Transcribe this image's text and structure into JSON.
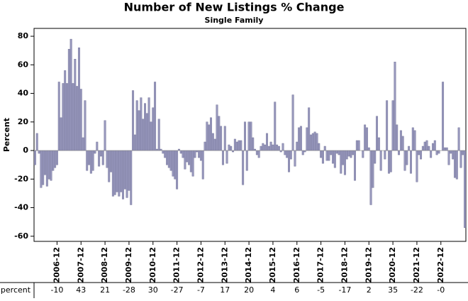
{
  "chart_data": {
    "type": "bar",
    "title": "Number of New Listings % Change",
    "subtitle": "Single Family",
    "y_label": "Percent",
    "color": "#9898bd",
    "ylim": [
      -63.6,
      85.5
    ],
    "yticks": [
      -60,
      -40,
      -20,
      0,
      20,
      40,
      60,
      80
    ],
    "categories": [
      null,
      null,
      null,
      null,
      null,
      null,
      null,
      null,
      null,
      null,
      null,
      "2006-12",
      null,
      null,
      null,
      null,
      null,
      null,
      null,
      null,
      null,
      null,
      null,
      "2007-12",
      null,
      null,
      null,
      null,
      null,
      null,
      null,
      null,
      null,
      null,
      null,
      "2008-12",
      null,
      null,
      null,
      null,
      null,
      null,
      null,
      null,
      null,
      null,
      null,
      "2009-12",
      null,
      null,
      null,
      null,
      null,
      null,
      null,
      null,
      null,
      null,
      null,
      "2010-12",
      null,
      null,
      null,
      null,
      null,
      null,
      null,
      null,
      null,
      null,
      null,
      "2011-12",
      null,
      null,
      null,
      null,
      null,
      null,
      null,
      null,
      null,
      null,
      null,
      "2012-12",
      null,
      null,
      null,
      null,
      null,
      null,
      null,
      null,
      null,
      null,
      null,
      "2013-12",
      null,
      null,
      null,
      null,
      null,
      null,
      null,
      null,
      null,
      null,
      null,
      "2014-12",
      null,
      null,
      null,
      null,
      null,
      null,
      null,
      null,
      null,
      null,
      null,
      "2015-12",
      null,
      null,
      null,
      null,
      null,
      null,
      null,
      null,
      null,
      null,
      null,
      "2016-12",
      null,
      null,
      null,
      null,
      null,
      null,
      null,
      null,
      null,
      null,
      null,
      "2017-12",
      null,
      null,
      null,
      null,
      null,
      null,
      null,
      null,
      null,
      null,
      null,
      "2018-12",
      null,
      null,
      null,
      null,
      null,
      null,
      null,
      null,
      null,
      null,
      null,
      "2019-12",
      null,
      null,
      null,
      null,
      null,
      null,
      null,
      null,
      null,
      null,
      null,
      "2020-12",
      null,
      null,
      null,
      null,
      null,
      null,
      null,
      null,
      null,
      null,
      null,
      "2021-12",
      null,
      null,
      null,
      null,
      null,
      null,
      null,
      null,
      null,
      null,
      null,
      "2022-12",
      null,
      null,
      null,
      null,
      null,
      null,
      null,
      null,
      null,
      null,
      null,
      null
    ],
    "values": [
      -10,
      12,
      -2,
      -26,
      -24,
      -17,
      -25,
      -20,
      -21,
      -14,
      -12,
      -10,
      48,
      23,
      47,
      56,
      47,
      71,
      78,
      47,
      64,
      45,
      72,
      43,
      9,
      35,
      -14,
      -10,
      -16,
      -14,
      -2,
      6,
      -11,
      -4,
      -10,
      21,
      -12,
      -22,
      -15,
      -32,
      -31,
      -29,
      -32,
      -29,
      -34,
      -27,
      -33,
      -28,
      -38,
      42,
      11,
      35,
      28,
      37,
      22,
      33,
      26,
      37,
      20,
      30,
      48,
      1,
      22,
      1,
      -2,
      -5,
      -10,
      -12,
      -14,
      -18,
      -20,
      -27,
      1,
      -2,
      -5,
      -13,
      -8,
      -10,
      -15,
      -18,
      -5,
      -1,
      -5,
      -7,
      -20,
      6,
      20,
      18,
      23,
      12,
      8,
      32,
      24,
      17,
      -10,
      17,
      -9,
      4,
      3,
      -1,
      8,
      6,
      7,
      7,
      -24,
      20,
      -14,
      20,
      20,
      9,
      1,
      -3,
      -5,
      3,
      5,
      4,
      12,
      3,
      6,
      4,
      34,
      4,
      3,
      -1,
      5,
      -3,
      -5,
      -15,
      -6,
      39,
      -11,
      6,
      16,
      17,
      -3,
      -1,
      16,
      30,
      11,
      12,
      13,
      12,
      5,
      -5,
      -9,
      3,
      -7,
      -7,
      -3,
      -9,
      -12,
      -2,
      -3,
      -16,
      -10,
      -17,
      -6,
      -4,
      -5,
      -3,
      -21,
      7,
      7,
      0,
      -5,
      18,
      16,
      2,
      -38,
      -26,
      -9,
      24,
      9,
      -14,
      0,
      -6,
      35,
      -16,
      -15,
      35,
      62,
      18,
      -3,
      14,
      10,
      -14,
      -10,
      3,
      -16,
      16,
      14,
      -22,
      -3,
      -6,
      3,
      6,
      7,
      3,
      -5,
      5,
      7,
      -3,
      -2,
      0,
      48,
      2,
      2,
      -10,
      -2,
      -6,
      -19,
      -20,
      16,
      -12,
      -3,
      -54
    ]
  },
  "table": {
    "label": "percent",
    "values": [
      "-10",
      "43",
      "21",
      "-28",
      "30",
      "-27",
      "-7",
      "17",
      "20",
      "4",
      "6",
      "-5",
      "-17",
      "2",
      "35",
      "-22",
      "-0"
    ]
  }
}
